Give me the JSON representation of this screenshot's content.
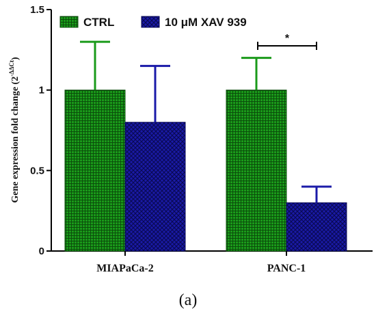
{
  "chart_data": {
    "type": "bar",
    "categories": [
      "MIAPaCa-2",
      "PANC-1"
    ],
    "series": [
      {
        "name": "CTRL",
        "values": [
          1.0,
          1.0
        ],
        "errors": [
          0.3,
          0.2
        ],
        "color": "#1a9a1a",
        "edge": "#0b4d0b"
      },
      {
        "name": "10 μM XAV 939",
        "values": [
          0.8,
          0.3
        ],
        "errors": [
          0.35,
          0.1
        ],
        "color": "#1a1aa8",
        "edge": "#0a0a55"
      }
    ],
    "ylabel_main": "Gene expression fold change (2",
    "ylabel_sup": "-ΔΔCt",
    "ylabel_close": ")",
    "ylim": [
      0,
      1.5
    ],
    "yticks": [
      "0",
      "0.5",
      "1",
      "1.5"
    ],
    "legend_position": "top-left",
    "significance": [
      {
        "category": "PANC-1",
        "label": "*"
      }
    ],
    "panel_label": "(a)"
  }
}
